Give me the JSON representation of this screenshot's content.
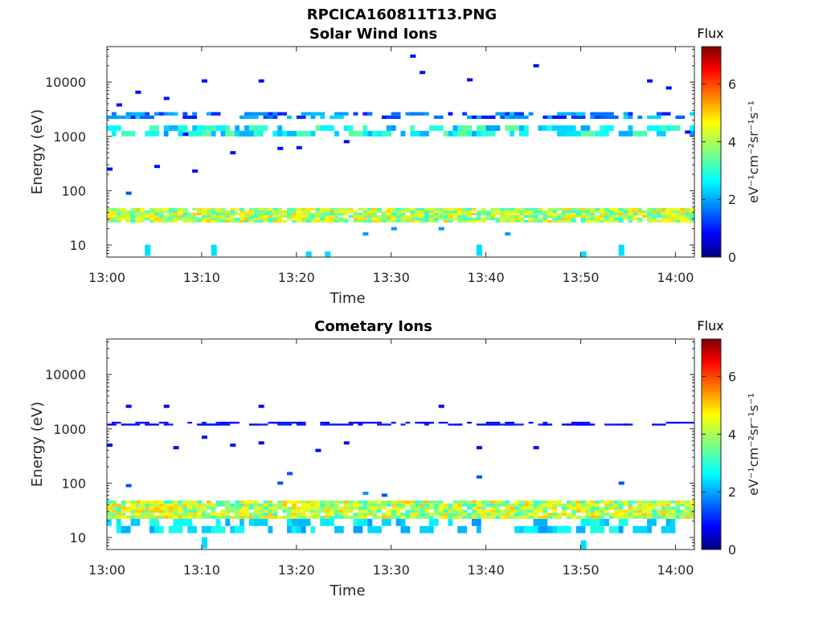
{
  "figure": {
    "filename": "RPCICA160811T13.PNG"
  },
  "chart_data": [
    {
      "type": "heatmap",
      "title": "Solar Wind Ions",
      "xlabel": "Time",
      "ylabel": "Energy (eV)",
      "x_ticks": [
        "13:00",
        "13:10",
        "13:20",
        "13:30",
        "13:40",
        "13:50",
        "14:00"
      ],
      "xlim": [
        "13:00",
        "14:02"
      ],
      "y_scale": "log",
      "y_ticks": [
        10,
        100,
        1000,
        10000
      ],
      "ylim": [
        6,
        45000
      ],
      "colorbar": {
        "label": "Flux",
        "unit": "eV⁻¹cm⁻²sr⁻¹s⁻¹",
        "ticks": [
          0,
          2,
          4,
          6
        ],
        "range": [
          0,
          7.3
        ],
        "colormap": "jet"
      },
      "bands": [
        {
          "energy_range": [
            26,
            48
          ],
          "time_range": [
            "13:00",
            "14:02"
          ],
          "flux_range": [
            3.0,
            5.0
          ],
          "description_visible": false
        },
        {
          "energy_range": [
            1000,
            1600
          ],
          "time_range": [
            "13:00",
            "14:02"
          ],
          "flux_range": [
            2.0,
            3.5
          ],
          "description_visible": false
        },
        {
          "energy_range": [
            2100,
            2800
          ],
          "time_range": [
            "13:00",
            "14:02"
          ],
          "flux_range": [
            1.0,
            2.5
          ],
          "description_visible": false
        }
      ],
      "points": [
        {
          "t": "13:00",
          "e": 250,
          "f": 1.0
        },
        {
          "t": "13:01",
          "e": 3800,
          "f": 1.0
        },
        {
          "t": "13:02",
          "e": 90,
          "f": 1.5
        },
        {
          "t": "13:03",
          "e": 6500,
          "f": 1.0
        },
        {
          "t": "13:04",
          "e": 8,
          "f": 2.5
        },
        {
          "t": "13:05",
          "e": 280,
          "f": 1.0
        },
        {
          "t": "13:06",
          "e": 5000,
          "f": 1.0
        },
        {
          "t": "13:08",
          "e": 1100,
          "f": 1.0
        },
        {
          "t": "13:09",
          "e": 230,
          "f": 1.0
        },
        {
          "t": "13:10",
          "e": 10500,
          "f": 1.0
        },
        {
          "t": "13:11",
          "e": 8,
          "f": 2.5
        },
        {
          "t": "13:13",
          "e": 500,
          "f": 1.0
        },
        {
          "t": "13:16",
          "e": 10500,
          "f": 1.0
        },
        {
          "t": "13:18",
          "e": 600,
          "f": 1.0
        },
        {
          "t": "13:20",
          "e": 620,
          "f": 1.0
        },
        {
          "t": "13:21",
          "e": 6,
          "f": 2.5
        },
        {
          "t": "13:23",
          "e": 6,
          "f": 2.5
        },
        {
          "t": "13:25",
          "e": 800,
          "f": 1.0
        },
        {
          "t": "13:27",
          "e": 16,
          "f": 2.0
        },
        {
          "t": "13:30",
          "e": 20,
          "f": 2.0
        },
        {
          "t": "13:32",
          "e": 30000,
          "f": 1.0
        },
        {
          "t": "13:33",
          "e": 15000,
          "f": 1.0
        },
        {
          "t": "13:35",
          "e": 20,
          "f": 2.0
        },
        {
          "t": "13:38",
          "e": 11000,
          "f": 1.0
        },
        {
          "t": "13:39",
          "e": 8,
          "f": 2.5
        },
        {
          "t": "13:42",
          "e": 16,
          "f": 2.0
        },
        {
          "t": "13:45",
          "e": 20000,
          "f": 1.0
        },
        {
          "t": "13:50",
          "e": 6,
          "f": 2.5
        },
        {
          "t": "13:54",
          "e": 8,
          "f": 2.5
        },
        {
          "t": "13:57",
          "e": 10500,
          "f": 1.0
        },
        {
          "t": "13:59",
          "e": 7800,
          "f": 1.0
        },
        {
          "t": "14:01",
          "e": 1200,
          "f": 1.0
        }
      ]
    },
    {
      "type": "heatmap",
      "title": "Cometary Ions",
      "xlabel": "Time",
      "ylabel": "Energy (eV)",
      "x_ticks": [
        "13:00",
        "13:10",
        "13:20",
        "13:30",
        "13:40",
        "13:50",
        "14:00"
      ],
      "xlim": [
        "13:00",
        "14:02"
      ],
      "y_scale": "log",
      "y_ticks": [
        10,
        100,
        1000,
        10000
      ],
      "ylim": [
        6,
        45000
      ],
      "colorbar": {
        "label": "Flux",
        "unit": "eV⁻¹cm⁻²sr⁻¹s⁻¹",
        "ticks": [
          0,
          2,
          4,
          6
        ],
        "range": [
          0,
          7.3
        ],
        "colormap": "jet"
      },
      "bands": [
        {
          "energy_range": [
            22,
            48
          ],
          "time_range": [
            "13:00",
            "14:02"
          ],
          "flux_range": [
            3.0,
            5.0
          ],
          "description_visible": false
        },
        {
          "energy_range": [
            12,
            22
          ],
          "time_range": [
            "13:00",
            "14:02"
          ],
          "flux_range": [
            2.0,
            3.0
          ],
          "description_visible": false
        },
        {
          "energy_range": [
            1150,
            1350
          ],
          "time_range": [
            "13:00",
            "14:02"
          ],
          "flux_range": [
            0.8,
            1.2
          ],
          "description_visible": false
        }
      ],
      "points": [
        {
          "t": "13:00",
          "e": 500,
          "f": 1.0
        },
        {
          "t": "13:02",
          "e": 90,
          "f": 1.5
        },
        {
          "t": "13:02",
          "e": 2600,
          "f": 1.0
        },
        {
          "t": "13:06",
          "e": 2600,
          "f": 1.0
        },
        {
          "t": "13:07",
          "e": 450,
          "f": 1.0
        },
        {
          "t": "13:10",
          "e": 8,
          "f": 2.5
        },
        {
          "t": "13:10",
          "e": 700,
          "f": 1.0
        },
        {
          "t": "13:13",
          "e": 500,
          "f": 1.0
        },
        {
          "t": "13:16",
          "e": 2600,
          "f": 1.0
        },
        {
          "t": "13:16",
          "e": 550,
          "f": 0.8
        },
        {
          "t": "13:18",
          "e": 100,
          "f": 1.5
        },
        {
          "t": "13:19",
          "e": 150,
          "f": 1.5
        },
        {
          "t": "13:22",
          "e": 400,
          "f": 1.0
        },
        {
          "t": "13:25",
          "e": 550,
          "f": 1.0
        },
        {
          "t": "13:27",
          "e": 65,
          "f": 2.0
        },
        {
          "t": "13:29",
          "e": 60,
          "f": 1.5
        },
        {
          "t": "13:35",
          "e": 2600,
          "f": 1.0
        },
        {
          "t": "13:39",
          "e": 450,
          "f": 0.8
        },
        {
          "t": "13:39",
          "e": 130,
          "f": 1.5
        },
        {
          "t": "13:45",
          "e": 450,
          "f": 1.0
        },
        {
          "t": "13:50",
          "e": 7,
          "f": 2.5
        },
        {
          "t": "13:54",
          "e": 100,
          "f": 1.5
        }
      ]
    }
  ]
}
